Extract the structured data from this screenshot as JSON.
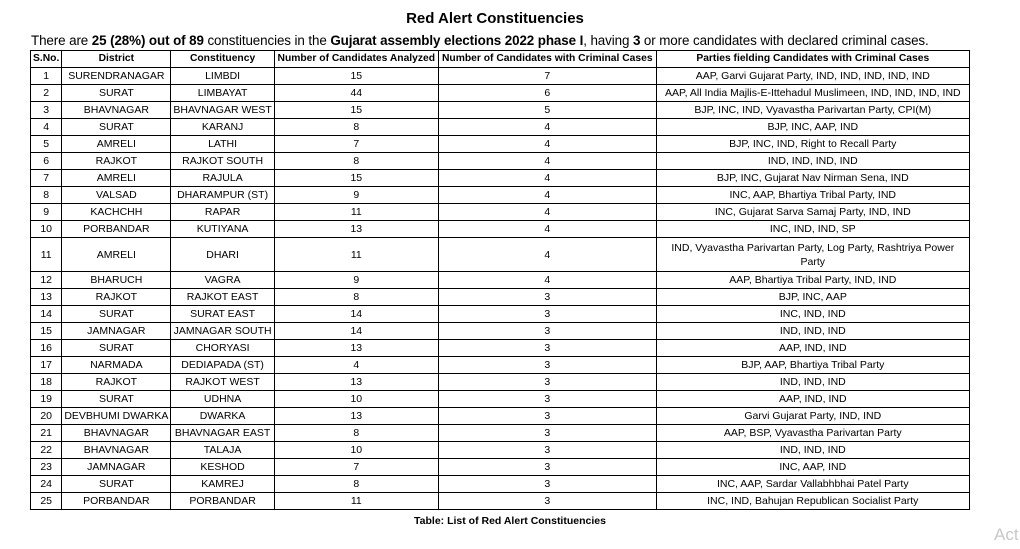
{
  "title": "Red Alert Constituencies",
  "intro": {
    "p1": "There are ",
    "b1": "25 (28%) out of 89",
    "p2": " constituencies in the ",
    "b2": "Gujarat assembly elections 2022 phase I",
    "p3": ", having ",
    "b3": "3",
    "p4": " or more candidates with declared criminal cases."
  },
  "headers": [
    "S.No.",
    "District",
    "Constituency",
    "Number of Candidates Analyzed",
    "Number of Candidates with Criminal Cases",
    "Parties fielding Candidates with Criminal Cases"
  ],
  "rows": [
    [
      "1",
      "SURENDRANAGAR",
      "LIMBDI",
      "15",
      "7",
      "AAP, Garvi Gujarat Party, IND, IND, IND, IND, IND"
    ],
    [
      "2",
      "SURAT",
      "LIMBAYAT",
      "44",
      "6",
      "AAP, All India Majlis-E-Ittehadul Muslimeen, IND, IND, IND, IND"
    ],
    [
      "3",
      "BHAVNAGAR",
      "BHAVNAGAR WEST",
      "15",
      "5",
      "BJP, INC, IND, Vyavastha Parivartan Party, CPI(M)"
    ],
    [
      "4",
      "SURAT",
      "KARANJ",
      "8",
      "4",
      "BJP, INC, AAP, IND"
    ],
    [
      "5",
      "AMRELI",
      "LATHI",
      "7",
      "4",
      "BJP, INC, IND, Right to Recall Party"
    ],
    [
      "6",
      "RAJKOT",
      "RAJKOT SOUTH",
      "8",
      "4",
      "IND, IND, IND, IND"
    ],
    [
      "7",
      "AMRELI",
      "RAJULA",
      "15",
      "4",
      "BJP, INC, Gujarat Nav Nirman Sena, IND"
    ],
    [
      "8",
      "VALSAD",
      "DHARAMPUR (ST)",
      "9",
      "4",
      "INC, AAP, Bhartiya Tribal Party, IND"
    ],
    [
      "9",
      "KACHCHH",
      "RAPAR",
      "11",
      "4",
      "INC, Gujarat Sarva Samaj Party, IND, IND"
    ],
    [
      "10",
      "PORBANDAR",
      "KUTIYANA",
      "13",
      "4",
      "INC, IND, IND, SP"
    ],
    [
      "11",
      "AMRELI",
      "DHARI",
      "11",
      "4",
      "IND, Vyavastha Parivartan Party, Log Party, Rashtriya Power Party"
    ],
    [
      "12",
      "BHARUCH",
      "VAGRA",
      "9",
      "4",
      "AAP, Bhartiya Tribal Party, IND, IND"
    ],
    [
      "13",
      "RAJKOT",
      "RAJKOT EAST",
      "8",
      "3",
      "BJP, INC, AAP"
    ],
    [
      "14",
      "SURAT",
      "SURAT EAST",
      "14",
      "3",
      "INC, IND, IND"
    ],
    [
      "15",
      "JAMNAGAR",
      "JAMNAGAR SOUTH",
      "14",
      "3",
      "IND, IND, IND"
    ],
    [
      "16",
      "SURAT",
      "CHORYASI",
      "13",
      "3",
      "AAP, IND, IND"
    ],
    [
      "17",
      "NARMADA",
      "DEDIAPADA (ST)",
      "4",
      "3",
      "BJP, AAP, Bhartiya Tribal Party"
    ],
    [
      "18",
      "RAJKOT",
      "RAJKOT WEST",
      "13",
      "3",
      "IND, IND, IND"
    ],
    [
      "19",
      "SURAT",
      "UDHNA",
      "10",
      "3",
      "AAP, IND, IND"
    ],
    [
      "20",
      "DEVBHUMI DWARKA",
      "DWARKA",
      "13",
      "3",
      "Garvi Gujarat Party, IND, IND"
    ],
    [
      "21",
      "BHAVNAGAR",
      "BHAVNAGAR EAST",
      "8",
      "3",
      "AAP, BSP, Vyavastha Parivartan Party"
    ],
    [
      "22",
      "BHAVNAGAR",
      "TALAJA",
      "10",
      "3",
      "IND, IND, IND"
    ],
    [
      "23",
      "JAMNAGAR",
      "KESHOD",
      "7",
      "3",
      "INC, AAP, IND"
    ],
    [
      "24",
      "SURAT",
      "KAMREJ",
      "8",
      "3",
      "INC, AAP, Sardar Vallabhbhai Patel Party"
    ],
    [
      "25",
      "PORBANDAR",
      "PORBANDAR",
      "11",
      "3",
      "INC, IND, Bahujan Republican Socialist Party"
    ]
  ],
  "caption": "Table: List of Red Alert Constituencies",
  "watermark": "Act"
}
